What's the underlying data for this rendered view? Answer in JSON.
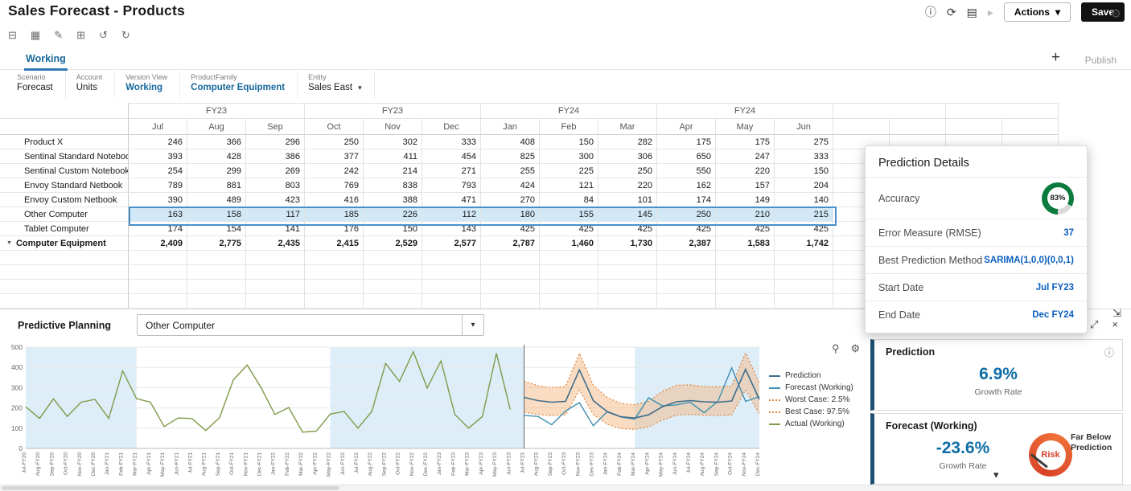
{
  "header": {
    "title": "Sales Forecast - Products",
    "actions_label": "Actions",
    "save_label": "Save"
  },
  "tabs": {
    "working": "Working",
    "add": "+",
    "publish": "Publish"
  },
  "pov": {
    "items": [
      {
        "dim": "Scenario",
        "member": "Forecast",
        "highlight": false,
        "dropdown": false
      },
      {
        "dim": "Account",
        "member": "Units",
        "highlight": false,
        "dropdown": false
      },
      {
        "dim": "Version View",
        "member": "Working",
        "highlight": true,
        "dropdown": false
      },
      {
        "dim": "ProductFamily",
        "member": "Computer Equipment",
        "highlight": true,
        "dropdown": false
      },
      {
        "dim": "Entity",
        "member": "Sales East",
        "highlight": false,
        "dropdown": true
      }
    ]
  },
  "grid": {
    "column_groups": [
      {
        "label": "FY23",
        "span": 3
      },
      {
        "label": "FY23",
        "span": 3
      },
      {
        "label": "FY24",
        "span": 3
      },
      {
        "label": "FY24",
        "span": 3
      }
    ],
    "months": [
      "Jul",
      "Aug",
      "Sep",
      "Oct",
      "Nov",
      "Dec",
      "Jan",
      "Feb",
      "Mar",
      "Apr",
      "May",
      "Jun"
    ],
    "rows": [
      {
        "label": "Product X",
        "bold": false,
        "selected": false,
        "collapsed": false,
        "values": [
          "246",
          "366",
          "296",
          "250",
          "302",
          "333",
          "408",
          "150",
          "282",
          "175",
          "175",
          "275"
        ]
      },
      {
        "label": "Sentinal Standard Notebook",
        "bold": false,
        "selected": false,
        "collapsed": false,
        "values": [
          "393",
          "428",
          "386",
          "377",
          "411",
          "454",
          "825",
          "300",
          "306",
          "650",
          "247",
          "333"
        ]
      },
      {
        "label": "Sentinal Custom Notebook",
        "bold": false,
        "selected": false,
        "collapsed": false,
        "values": [
          "254",
          "299",
          "269",
          "242",
          "214",
          "271",
          "255",
          "225",
          "250",
          "550",
          "220",
          "150"
        ]
      },
      {
        "label": "Envoy Standard Netbook",
        "bold": false,
        "selected": false,
        "collapsed": false,
        "values": [
          "789",
          "881",
          "803",
          "769",
          "838",
          "793",
          "424",
          "121",
          "220",
          "162",
          "157",
          "204"
        ]
      },
      {
        "label": "Envoy Custom Netbook",
        "bold": false,
        "selected": false,
        "collapsed": false,
        "values": [
          "390",
          "489",
          "423",
          "416",
          "388",
          "471",
          "270",
          "84",
          "101",
          "174",
          "149",
          "140"
        ]
      },
      {
        "label": "Other Computer",
        "bold": false,
        "selected": true,
        "collapsed": false,
        "values": [
          "163",
          "158",
          "117",
          "185",
          "226",
          "112",
          "180",
          "155",
          "145",
          "250",
          "210",
          "215"
        ]
      },
      {
        "label": "Tablet Computer",
        "bold": false,
        "selected": false,
        "collapsed": false,
        "values": [
          "174",
          "154",
          "141",
          "176",
          "150",
          "143",
          "425",
          "425",
          "425",
          "425",
          "425",
          "425"
        ]
      },
      {
        "label": "Computer Equipment",
        "bold": true,
        "selected": false,
        "collapsed": true,
        "values": [
          "2,409",
          "2,775",
          "2,435",
          "2,415",
          "2,529",
          "2,577",
          "2,787",
          "1,460",
          "1,730",
          "2,387",
          "1,583",
          "1,742"
        ]
      }
    ],
    "empty_rows": 4,
    "empty_cols": 4
  },
  "prediction_details": {
    "title": "Prediction Details",
    "rows": [
      {
        "label": "Accuracy",
        "value": "83%",
        "gauge": true
      },
      {
        "label": "Error Measure (RMSE)",
        "value": "37",
        "gauge": false
      },
      {
        "label": "Best Prediction Method",
        "value": "SARIMA(1,0,0)(0,0,1)",
        "gauge": false
      },
      {
        "label": "Start Date",
        "value": "Jul FY23",
        "gauge": false
      },
      {
        "label": "End Date",
        "value": "Dec FY24",
        "gauge": false
      }
    ]
  },
  "predictive_planning": {
    "title": "Predictive Planning",
    "member_selector": "Other Computer"
  },
  "kpi": {
    "prediction": {
      "title": "Prediction",
      "value": "6.9%",
      "caption": "Growth Rate"
    },
    "forecast": {
      "title": "Forecast (Working)",
      "value": "-23.6%",
      "caption": "Growth Rate",
      "gauge_label": "Risk",
      "note": "Far Below Prediction"
    }
  },
  "chart_data": {
    "type": "line",
    "title": "",
    "xlabel": "",
    "ylabel": "",
    "ylim": [
      0,
      500
    ],
    "ytick": 100,
    "grid": true,
    "legend_position": "right",
    "divider_index": 36,
    "shaded_regions": [
      [
        0,
        8
      ],
      [
        22,
        36
      ],
      [
        44,
        53
      ]
    ],
    "x_labels": [
      "Jul-FY20",
      "Aug-FY20",
      "Sep-FY20",
      "Oct-FY20",
      "Nov-FY20",
      "Dec-FY20",
      "Jan-FY21",
      "Feb-FY21",
      "Mar-FY21",
      "Apr-FY21",
      "May-FY21",
      "Jun-FY21",
      "Jul-FY21",
      "Aug-FY21",
      "Sep-FY21",
      "Oct-FY21",
      "Nov-FY21",
      "Dec-FY21",
      "Jan-FY22",
      "Feb-FY22",
      "Mar-FY22",
      "Apr-FY22",
      "May-FY22",
      "Jun-FY22",
      "Jul-FY22",
      "Aug-FY22",
      "Sep-FY22",
      "Oct-FY22",
      "Nov-FY22",
      "Dec-FY22",
      "Jan-FY23",
      "Feb-FY23",
      "Mar-FY23",
      "Apr-FY23",
      "May-FY23",
      "Jun-FY23",
      "Jul-FY23",
      "Aug-FY23",
      "Sep-FY23",
      "Oct-FY23",
      "Nov-FY23",
      "Dec-FY23",
      "Jan-FY24",
      "Feb-FY24",
      "Mar-FY24",
      "Apr-FY24",
      "May-FY24",
      "Jun-FY24",
      "Jul-FY24",
      "Aug-FY24",
      "Sep-FY24",
      "Oct-FY24",
      "Nov-FY24",
      "Dec-FY24"
    ],
    "series": [
      {
        "name": "Prediction",
        "color": "#3f6e8c",
        "dash": false,
        "width": 1.6,
        "start": 36,
        "values": [
          252,
          236,
          228,
          232,
          388,
          236,
          182,
          156,
          150,
          166,
          206,
          230,
          236,
          230,
          228,
          234,
          390,
          242
        ]
      },
      {
        "name": "Forecast (Working)",
        "color": "#3e8fb0",
        "dash": false,
        "width": 1.4,
        "start": 36,
        "values": [
          163,
          158,
          117,
          185,
          226,
          112,
          180,
          155,
          145,
          250,
          210,
          215,
          228,
          176,
          232,
          398,
          232,
          256
        ]
      },
      {
        "name": "Worst Case: 2.5%",
        "color": "#e0853a",
        "dash": true,
        "width": 1.2,
        "start": 36,
        "values": [
          178,
          168,
          162,
          165,
          288,
          168,
          120,
          98,
          94,
          106,
          140,
          164,
          168,
          164,
          162,
          166,
          288,
          172
        ]
      },
      {
        "name": "Best Case: 97.5%",
        "color": "#e0853a",
        "dash": true,
        "width": 1.2,
        "start": 36,
        "values": [
          332,
          310,
          300,
          306,
          470,
          312,
          252,
          222,
          216,
          232,
          282,
          312,
          314,
          306,
          304,
          308,
          472,
          322
        ]
      },
      {
        "name": "Actual (Working)",
        "color": "#7f9a48",
        "dash": false,
        "width": 1.4,
        "start": 0,
        "values": [
          205,
          148,
          245,
          158,
          228,
          242,
          148,
          383,
          246,
          228,
          108,
          150,
          148,
          88,
          152,
          338,
          412,
          300,
          168,
          202,
          80,
          86,
          170,
          182,
          100,
          182,
          420,
          330,
          478,
          298,
          432,
          168,
          100,
          158,
          470,
          192
        ]
      }
    ],
    "band_between": [
      "Worst Case: 2.5%",
      "Best Case: 97.5%"
    ]
  },
  "icons": {
    "info": "ⓘ",
    "refresh": "⟳",
    "query": "▤",
    "jump": "▸",
    "caret": "▾",
    "adjust": "⊟",
    "layout": "▦",
    "comment": "✎",
    "hierarchy": "⊞",
    "undo": "↺",
    "redo": "↻",
    "gear": "⚙",
    "zoom": "⚲",
    "dock": "⇲",
    "expand": "⤢",
    "close": "×",
    "collapse": "▼",
    "chevron_down": "▾"
  },
  "colors": {
    "accent_blue": "#15699c",
    "value_blue": "#0b5fbf",
    "kpi_blue": "#0e6da6",
    "risk_red": "#d5402a",
    "gauge_green": "#0a7a3d",
    "selection_bg": "#d3e8f7",
    "selection_border": "#4a8fc9",
    "band_fill": "#f3b27a",
    "band_bg": "#ddeef8"
  }
}
